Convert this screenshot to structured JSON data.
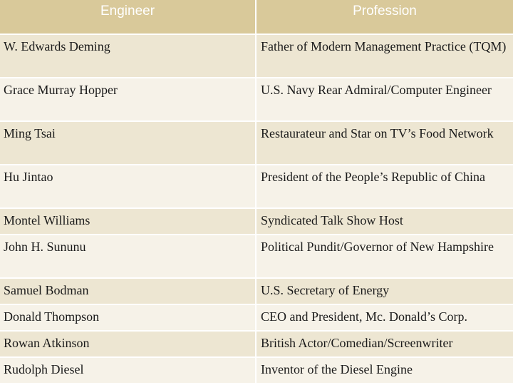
{
  "header": {
    "col1": "Engineer",
    "col2": "Profession"
  },
  "rows": [
    {
      "engineer": "W. Edwards Deming",
      "profession": "Father of Modern Management Practice (TQM)"
    },
    {
      "engineer": "Grace Murray Hopper",
      "profession": "U.S. Navy Rear Admiral/Computer Engineer"
    },
    {
      "engineer": "Ming Tsai",
      "profession": "Restaurateur and Star on TV’s Food Network"
    },
    {
      "engineer": "Hu Jintao",
      "profession": "President of the People’s Republic of China"
    },
    {
      "engineer": "Montel Williams",
      "profession": "Syndicated Talk Show Host"
    },
    {
      "engineer": "John H. Sununu",
      "profession": "Political Pundit/Governor of New Hampshire"
    },
    {
      "engineer": "Samuel Bodman",
      "profession": "U.S. Secretary of Energy"
    },
    {
      "engineer": "Donald Thompson",
      "profession": "CEO and President, Mc. Donald’s Corp."
    },
    {
      "engineer": "Rowan Atkinson",
      "profession": "British Actor/Comedian/Screenwriter"
    },
    {
      "engineer": "Rudolph Diesel",
      "profession": "Inventor of the Diesel Engine"
    }
  ],
  "colors": {
    "header_bg": "#d9c99a",
    "row_odd_bg": "#ede6d2",
    "row_even_bg": "#f6f2e8"
  }
}
